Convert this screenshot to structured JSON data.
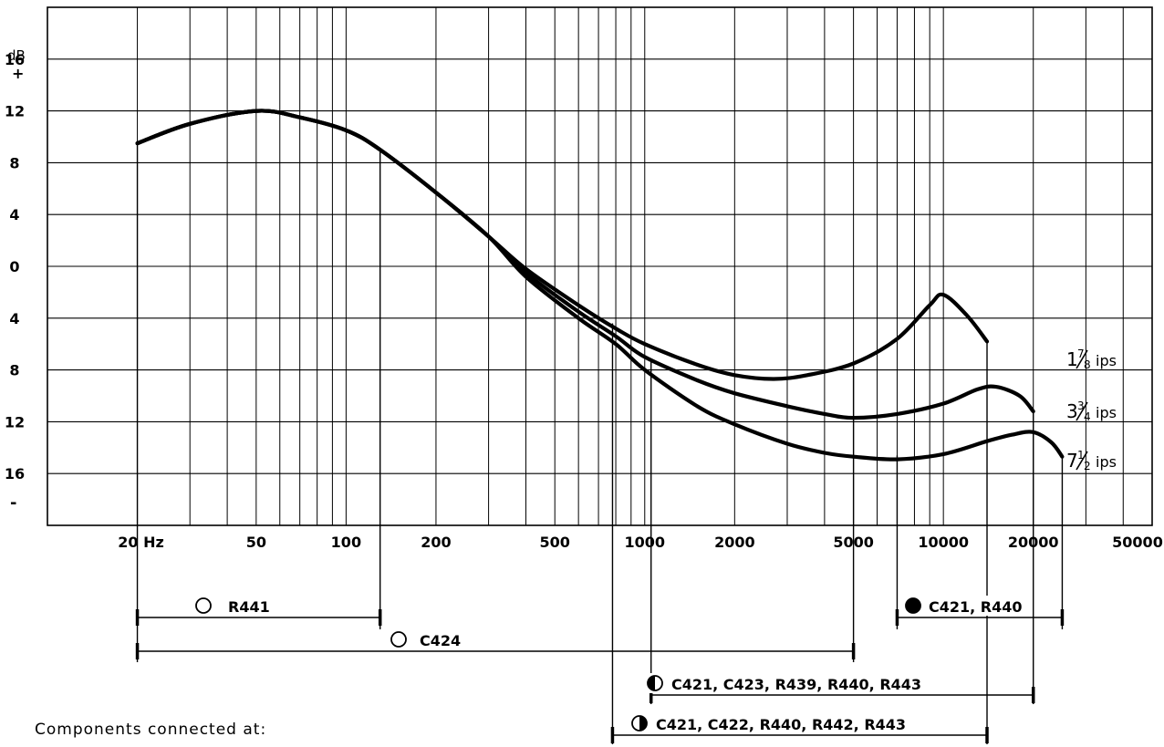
{
  "chart_data": {
    "type": "line",
    "title": "",
    "xlabel": "",
    "ylabel": "dB",
    "y_sign_top": "+",
    "y_sign_bottom": "-",
    "x_scale": "log",
    "xlim": [
      10,
      50000
    ],
    "ylim": [
      -20,
      20
    ],
    "grid": true,
    "x_ticks": [
      {
        "value": 20,
        "label": "20 Hz"
      },
      {
        "value": 50,
        "label": "50"
      },
      {
        "value": 100,
        "label": "100"
      },
      {
        "value": 200,
        "label": "200"
      },
      {
        "value": 500,
        "label": "500"
      },
      {
        "value": 1000,
        "label": "1000"
      },
      {
        "value": 2000,
        "label": "2000"
      },
      {
        "value": 5000,
        "label": "5000"
      },
      {
        "value": 10000,
        "label": "10000"
      },
      {
        "value": 20000,
        "label": "20000"
      },
      {
        "value": 50000,
        "label": "50000"
      }
    ],
    "y_ticks": [
      {
        "value": 16,
        "label": "16"
      },
      {
        "value": 12,
        "label": "12"
      },
      {
        "value": 8,
        "label": "8"
      },
      {
        "value": 4,
        "label": "4"
      },
      {
        "value": 0,
        "label": "0"
      },
      {
        "value": -4,
        "label": "4"
      },
      {
        "value": -8,
        "label": "8"
      },
      {
        "value": -12,
        "label": "12"
      },
      {
        "value": -16,
        "label": "16"
      }
    ],
    "series": [
      {
        "name": "1⅞ ips",
        "label_parts": [
          "1",
          "7",
          "8",
          "ips"
        ],
        "points": [
          [
            20,
            9.5
          ],
          [
            30,
            11
          ],
          [
            50,
            12
          ],
          [
            70,
            11.5
          ],
          [
            100,
            10.5
          ],
          [
            130,
            9
          ],
          [
            200,
            5.7
          ],
          [
            300,
            2.3
          ],
          [
            400,
            -0.2
          ],
          [
            600,
            -3
          ],
          [
            800,
            -4.8
          ],
          [
            1000,
            -6
          ],
          [
            1500,
            -7.6
          ],
          [
            2000,
            -8.4
          ],
          [
            2700,
            -8.7
          ],
          [
            3500,
            -8.4
          ],
          [
            5000,
            -7.5
          ],
          [
            7000,
            -5.6
          ],
          [
            9000,
            -3
          ],
          [
            10000,
            -2.2
          ],
          [
            12000,
            -3.8
          ],
          [
            14000,
            -5.8
          ]
        ]
      },
      {
        "name": "3¾ ips",
        "label_parts": [
          "3",
          "3",
          "4",
          "ips"
        ],
        "points": [
          [
            20,
            9.5
          ],
          [
            30,
            11
          ],
          [
            50,
            12
          ],
          [
            70,
            11.5
          ],
          [
            100,
            10.5
          ],
          [
            130,
            9
          ],
          [
            200,
            5.7
          ],
          [
            300,
            2.3
          ],
          [
            400,
            -0.5
          ],
          [
            600,
            -3.5
          ],
          [
            800,
            -5.4
          ],
          [
            1000,
            -7
          ],
          [
            1500,
            -8.8
          ],
          [
            2000,
            -9.8
          ],
          [
            3000,
            -10.8
          ],
          [
            4000,
            -11.4
          ],
          [
            5000,
            -11.7
          ],
          [
            7000,
            -11.4
          ],
          [
            10000,
            -10.6
          ],
          [
            13000,
            -9.5
          ],
          [
            15000,
            -9.3
          ],
          [
            18000,
            -10
          ],
          [
            20000,
            -11.2
          ]
        ]
      },
      {
        "name": "7½ ips",
        "label_parts": [
          "7",
          "1",
          "2",
          "ips"
        ],
        "points": [
          [
            20,
            9.5
          ],
          [
            30,
            11
          ],
          [
            50,
            12
          ],
          [
            70,
            11.5
          ],
          [
            100,
            10.5
          ],
          [
            130,
            9
          ],
          [
            200,
            5.7
          ],
          [
            300,
            2.3
          ],
          [
            400,
            -0.8
          ],
          [
            600,
            -4
          ],
          [
            800,
            -6
          ],
          [
            1000,
            -8
          ],
          [
            1500,
            -10.8
          ],
          [
            2000,
            -12.2
          ],
          [
            3000,
            -13.7
          ],
          [
            4000,
            -14.4
          ],
          [
            5000,
            -14.7
          ],
          [
            7000,
            -14.9
          ],
          [
            10000,
            -14.5
          ],
          [
            14000,
            -13.5
          ],
          [
            17000,
            -13
          ],
          [
            20000,
            -12.8
          ],
          [
            23000,
            -13.6
          ],
          [
            25000,
            -14.7
          ]
        ]
      }
    ],
    "annotations": [
      {
        "x_start": 20,
        "x_end": 130,
        "symbol": "open",
        "text": "R441"
      },
      {
        "x_start": 20,
        "x_end": 5000,
        "symbol": "open",
        "text": "C424"
      },
      {
        "x_start": 7000,
        "x_end": 25000,
        "symbol": "filled",
        "text": "C421, R440"
      },
      {
        "x_start": 1050,
        "x_end": 20000,
        "symbol": "half-left",
        "text": "C421, C423, R439, R440, R443"
      },
      {
        "x_start": 780,
        "x_end": 14000,
        "symbol": "half-right",
        "text": "C421, C422, R440, R442, R443"
      }
    ]
  },
  "caption": "Components connected at:"
}
